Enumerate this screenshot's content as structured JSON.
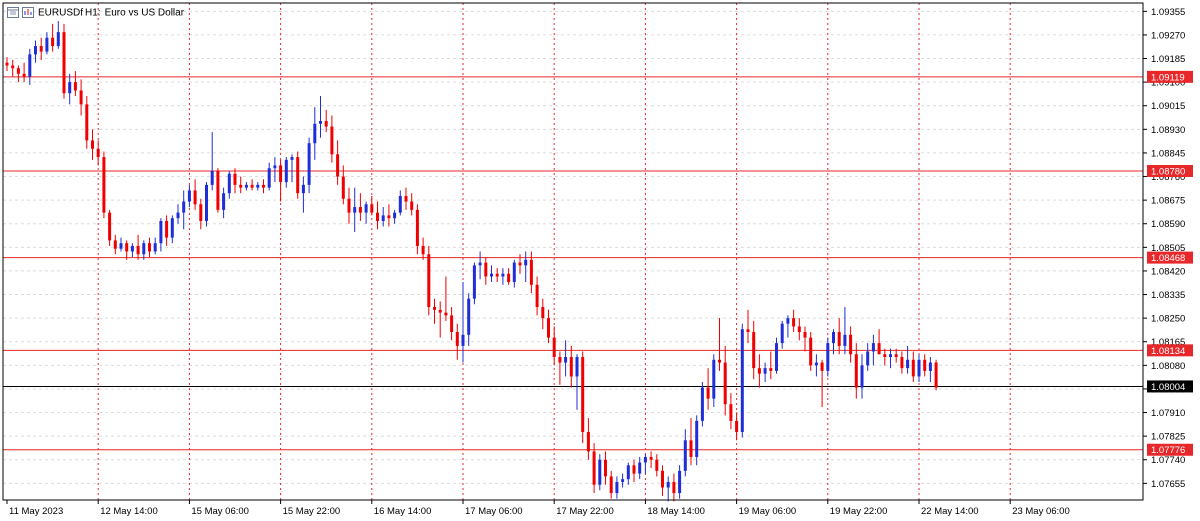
{
  "chart_data": {
    "type": "candlestick",
    "symbol": "EURUSDf",
    "timeframe": "H1:",
    "description": "Euro vs US Dollar",
    "ylim": [
      1.07595,
      1.09385
    ],
    "y_ticks": [
      "1.09355",
      "1.09270",
      "1.09185",
      "1.09100",
      "1.09015",
      "1.08930",
      "1.08845",
      "1.08760",
      "1.08675",
      "1.08590",
      "1.08505",
      "1.08420",
      "1.08335",
      "1.08250",
      "1.08165",
      "1.08080",
      "1.07995",
      "1.07910",
      "1.07825",
      "1.07740",
      "1.07655"
    ],
    "x_ticks": [
      "11 May 2023",
      "12 May 14:00",
      "15 May 06:00",
      "15 May 22:00",
      "16 May 14:00",
      "17 May 06:00",
      "17 May 22:00",
      "18 May 14:00",
      "19 May 06:00",
      "19 May 22:00",
      "22 May 14:00",
      "23 May 06:00"
    ],
    "levels": [
      {
        "label": "1.09119",
        "value": 1.09119,
        "color": "#e8272b"
      },
      {
        "label": "1.08780",
        "value": 1.0878,
        "color": "#e8272b"
      },
      {
        "label": "1.08468",
        "value": 1.08468,
        "color": "#e8272b"
      },
      {
        "label": "1.08134",
        "value": 1.08134,
        "color": "#e8272b"
      },
      {
        "label": "1.07776",
        "value": 1.07776,
        "color": "#e8272b"
      }
    ],
    "current_price": {
      "label": "1.08004",
      "value": 1.08004,
      "color": "#000000"
    },
    "bull_color": "#1f2ed6",
    "bear_color": "#f00000",
    "grid": true,
    "candles": [
      {
        "o": 1.0917,
        "h": 1.0919,
        "l": 1.0914,
        "c": 1.0916
      },
      {
        "o": 1.0916,
        "h": 1.0918,
        "l": 1.0912,
        "c": 1.0915
      },
      {
        "o": 1.0915,
        "h": 1.0916,
        "l": 1.091,
        "c": 1.0913
      },
      {
        "o": 1.0913,
        "h": 1.0917,
        "l": 1.091,
        "c": 1.0912
      },
      {
        "o": 1.0912,
        "h": 1.0922,
        "l": 1.0909,
        "c": 1.092
      },
      {
        "o": 1.092,
        "h": 1.0925,
        "l": 1.0917,
        "c": 1.0923
      },
      {
        "o": 1.0923,
        "h": 1.0926,
        "l": 1.0918,
        "c": 1.0921
      },
      {
        "o": 1.0921,
        "h": 1.0928,
        "l": 1.092,
        "c": 1.0926
      },
      {
        "o": 1.0926,
        "h": 1.0931,
        "l": 1.0921,
        "c": 1.0923
      },
      {
        "o": 1.0923,
        "h": 1.0932,
        "l": 1.0922,
        "c": 1.0928
      },
      {
        "o": 1.0928,
        "h": 1.0931,
        "l": 1.0904,
        "c": 1.0906
      },
      {
        "o": 1.0906,
        "h": 1.0913,
        "l": 1.0902,
        "c": 1.091
      },
      {
        "o": 1.091,
        "h": 1.0914,
        "l": 1.0905,
        "c": 1.0907
      },
      {
        "o": 1.0907,
        "h": 1.0911,
        "l": 1.0898,
        "c": 1.0902
      },
      {
        "o": 1.0902,
        "h": 1.0905,
        "l": 1.0886,
        "c": 1.0889
      },
      {
        "o": 1.0889,
        "h": 1.0893,
        "l": 1.0882,
        "c": 1.0886
      },
      {
        "o": 1.0886,
        "h": 1.0889,
        "l": 1.088,
        "c": 1.0883
      },
      {
        "o": 1.0883,
        "h": 1.0885,
        "l": 1.0861,
        "c": 1.0863
      },
      {
        "o": 1.0863,
        "h": 1.0864,
        "l": 1.0851,
        "c": 1.0853
      },
      {
        "o": 1.0853,
        "h": 1.0855,
        "l": 1.0848,
        "c": 1.085
      },
      {
        "o": 1.085,
        "h": 1.0854,
        "l": 1.0849,
        "c": 1.0852
      },
      {
        "o": 1.0852,
        "h": 1.0853,
        "l": 1.0846,
        "c": 1.0849
      },
      {
        "o": 1.0849,
        "h": 1.0852,
        "l": 1.0847,
        "c": 1.0851
      },
      {
        "o": 1.0851,
        "h": 1.0855,
        "l": 1.0846,
        "c": 1.0848
      },
      {
        "o": 1.0848,
        "h": 1.0853,
        "l": 1.0846,
        "c": 1.0852
      },
      {
        "o": 1.0852,
        "h": 1.0854,
        "l": 1.0847,
        "c": 1.0849
      },
      {
        "o": 1.0849,
        "h": 1.0854,
        "l": 1.0848,
        "c": 1.0852
      },
      {
        "o": 1.0852,
        "h": 1.0861,
        "l": 1.0849,
        "c": 1.086
      },
      {
        "o": 1.086,
        "h": 1.0862,
        "l": 1.0851,
        "c": 1.0854
      },
      {
        "o": 1.0854,
        "h": 1.0862,
        "l": 1.0852,
        "c": 1.0861
      },
      {
        "o": 1.0861,
        "h": 1.0866,
        "l": 1.0859,
        "c": 1.0863
      },
      {
        "o": 1.0863,
        "h": 1.0871,
        "l": 1.0857,
        "c": 1.0867
      },
      {
        "o": 1.0867,
        "h": 1.0873,
        "l": 1.0865,
        "c": 1.0871
      },
      {
        "o": 1.0871,
        "h": 1.0875,
        "l": 1.0864,
        "c": 1.0866
      },
      {
        "o": 1.0866,
        "h": 1.0868,
        "l": 1.0857,
        "c": 1.086
      },
      {
        "o": 1.086,
        "h": 1.0874,
        "l": 1.0858,
        "c": 1.0873
      },
      {
        "o": 1.0873,
        "h": 1.0892,
        "l": 1.0871,
        "c": 1.0878
      },
      {
        "o": 1.0878,
        "h": 1.0879,
        "l": 1.0863,
        "c": 1.0864
      },
      {
        "o": 1.0864,
        "h": 1.0872,
        "l": 1.0861,
        "c": 1.087
      },
      {
        "o": 1.087,
        "h": 1.0878,
        "l": 1.0868,
        "c": 1.0877
      },
      {
        "o": 1.0877,
        "h": 1.0879,
        "l": 1.087,
        "c": 1.0873
      },
      {
        "o": 1.0873,
        "h": 1.0876,
        "l": 1.087,
        "c": 1.0872
      },
      {
        "o": 1.0872,
        "h": 1.0874,
        "l": 1.0871,
        "c": 1.0873
      },
      {
        "o": 1.0873,
        "h": 1.0875,
        "l": 1.0871,
        "c": 1.0872
      },
      {
        "o": 1.0872,
        "h": 1.0874,
        "l": 1.0871,
        "c": 1.0873
      },
      {
        "o": 1.0873,
        "h": 1.0875,
        "l": 1.087,
        "c": 1.0872
      },
      {
        "o": 1.0872,
        "h": 1.0881,
        "l": 1.0871,
        "c": 1.0879
      },
      {
        "o": 1.0879,
        "h": 1.0883,
        "l": 1.0874,
        "c": 1.088
      },
      {
        "o": 1.088,
        "h": 1.0882,
        "l": 1.0867,
        "c": 1.0874
      },
      {
        "o": 1.0874,
        "h": 1.0883,
        "l": 1.0872,
        "c": 1.0882
      },
      {
        "o": 1.0882,
        "h": 1.0884,
        "l": 1.0874,
        "c": 1.0883
      },
      {
        "o": 1.0883,
        "h": 1.0885,
        "l": 1.0868,
        "c": 1.087
      },
      {
        "o": 1.087,
        "h": 1.0876,
        "l": 1.0863,
        "c": 1.0873
      },
      {
        "o": 1.0873,
        "h": 1.089,
        "l": 1.087,
        "c": 1.0888
      },
      {
        "o": 1.0888,
        "h": 1.0901,
        "l": 1.0882,
        "c": 1.0895
      },
      {
        "o": 1.0895,
        "h": 1.0905,
        "l": 1.089,
        "c": 1.0896
      },
      {
        "o": 1.0896,
        "h": 1.09,
        "l": 1.0892,
        "c": 1.0894
      },
      {
        "o": 1.0894,
        "h": 1.0898,
        "l": 1.0881,
        "c": 1.0884
      },
      {
        "o": 1.0884,
        "h": 1.0889,
        "l": 1.0873,
        "c": 1.0876
      },
      {
        "o": 1.0876,
        "h": 1.088,
        "l": 1.0866,
        "c": 1.0868
      },
      {
        "o": 1.0868,
        "h": 1.0872,
        "l": 1.0859,
        "c": 1.0863
      },
      {
        "o": 1.0863,
        "h": 1.0872,
        "l": 1.0856,
        "c": 1.0865
      },
      {
        "o": 1.0865,
        "h": 1.087,
        "l": 1.086,
        "c": 1.0863
      },
      {
        "o": 1.0863,
        "h": 1.0867,
        "l": 1.0859,
        "c": 1.0866
      },
      {
        "o": 1.0866,
        "h": 1.0869,
        "l": 1.0862,
        "c": 1.0863
      },
      {
        "o": 1.0863,
        "h": 1.0867,
        "l": 1.0857,
        "c": 1.086
      },
      {
        "o": 1.086,
        "h": 1.0865,
        "l": 1.0858,
        "c": 1.0862
      },
      {
        "o": 1.0862,
        "h": 1.0866,
        "l": 1.0858,
        "c": 1.0861
      },
      {
        "o": 1.0861,
        "h": 1.0864,
        "l": 1.0859,
        "c": 1.0863
      },
      {
        "o": 1.0863,
        "h": 1.0871,
        "l": 1.0862,
        "c": 1.0869
      },
      {
        "o": 1.0869,
        "h": 1.0872,
        "l": 1.0864,
        "c": 1.0867
      },
      {
        "o": 1.0867,
        "h": 1.087,
        "l": 1.0862,
        "c": 1.0864
      },
      {
        "o": 1.0864,
        "h": 1.0866,
        "l": 1.0848,
        "c": 1.0851
      },
      {
        "o": 1.0851,
        "h": 1.0854,
        "l": 1.0846,
        "c": 1.0848
      },
      {
        "o": 1.0848,
        "h": 1.0851,
        "l": 1.0826,
        "c": 1.0829
      },
      {
        "o": 1.0829,
        "h": 1.0832,
        "l": 1.0823,
        "c": 1.0828
      },
      {
        "o": 1.0828,
        "h": 1.0831,
        "l": 1.0818,
        "c": 1.0827
      },
      {
        "o": 1.0827,
        "h": 1.084,
        "l": 1.0824,
        "c": 1.0826
      },
      {
        "o": 1.0826,
        "h": 1.0829,
        "l": 1.0817,
        "c": 1.082
      },
      {
        "o": 1.082,
        "h": 1.0823,
        "l": 1.081,
        "c": 1.0815
      },
      {
        "o": 1.0815,
        "h": 1.0838,
        "l": 1.0809,
        "c": 1.0819
      },
      {
        "o": 1.0819,
        "h": 1.0834,
        "l": 1.0815,
        "c": 1.0832
      },
      {
        "o": 1.0832,
        "h": 1.0845,
        "l": 1.083,
        "c": 1.0844
      },
      {
        "o": 1.0844,
        "h": 1.0849,
        "l": 1.0839,
        "c": 1.0845
      },
      {
        "o": 1.0845,
        "h": 1.0847,
        "l": 1.0837,
        "c": 1.084
      },
      {
        "o": 1.084,
        "h": 1.0844,
        "l": 1.0838,
        "c": 1.0841
      },
      {
        "o": 1.0841,
        "h": 1.0843,
        "l": 1.0838,
        "c": 1.084
      },
      {
        "o": 1.084,
        "h": 1.0843,
        "l": 1.0837,
        "c": 1.0841
      },
      {
        "o": 1.0841,
        "h": 1.0843,
        "l": 1.0837,
        "c": 1.0838
      },
      {
        "o": 1.0838,
        "h": 1.0846,
        "l": 1.0836,
        "c": 1.0845
      },
      {
        "o": 1.0845,
        "h": 1.0848,
        "l": 1.0841,
        "c": 1.0844
      },
      {
        "o": 1.0844,
        "h": 1.0849,
        "l": 1.0838,
        "c": 1.0846
      },
      {
        "o": 1.0846,
        "h": 1.0849,
        "l": 1.0834,
        "c": 1.0837
      },
      {
        "o": 1.0837,
        "h": 1.084,
        "l": 1.0826,
        "c": 1.0829
      },
      {
        "o": 1.0829,
        "h": 1.0832,
        "l": 1.0821,
        "c": 1.0825
      },
      {
        "o": 1.0825,
        "h": 1.0828,
        "l": 1.0816,
        "c": 1.0818
      },
      {
        "o": 1.0818,
        "h": 1.0822,
        "l": 1.0808,
        "c": 1.0811
      },
      {
        "o": 1.0811,
        "h": 1.0813,
        "l": 1.0801,
        "c": 1.0809
      },
      {
        "o": 1.0809,
        "h": 1.0817,
        "l": 1.0804,
        "c": 1.0811
      },
      {
        "o": 1.0811,
        "h": 1.0815,
        "l": 1.08,
        "c": 1.0804
      },
      {
        "o": 1.0804,
        "h": 1.0812,
        "l": 1.0792,
        "c": 1.0811
      },
      {
        "o": 1.0811,
        "h": 1.0813,
        "l": 1.078,
        "c": 1.0784
      },
      {
        "o": 1.0784,
        "h": 1.0789,
        "l": 1.0774,
        "c": 1.0777
      },
      {
        "o": 1.0777,
        "h": 1.078,
        "l": 1.0762,
        "c": 1.0765
      },
      {
        "o": 1.0765,
        "h": 1.0776,
        "l": 1.0763,
        "c": 1.0774
      },
      {
        "o": 1.0774,
        "h": 1.0777,
        "l": 1.0765,
        "c": 1.0768
      },
      {
        "o": 1.0768,
        "h": 1.077,
        "l": 1.076,
        "c": 1.0762
      },
      {
        "o": 1.0762,
        "h": 1.0768,
        "l": 1.076,
        "c": 1.0766
      },
      {
        "o": 1.0766,
        "h": 1.0769,
        "l": 1.0764,
        "c": 1.0767
      },
      {
        "o": 1.0767,
        "h": 1.0773,
        "l": 1.0765,
        "c": 1.0772
      },
      {
        "o": 1.0772,
        "h": 1.0774,
        "l": 1.0766,
        "c": 1.0769
      },
      {
        "o": 1.0769,
        "h": 1.0775,
        "l": 1.0767,
        "c": 1.0773
      },
      {
        "o": 1.0773,
        "h": 1.0776,
        "l": 1.0769,
        "c": 1.0775
      },
      {
        "o": 1.0775,
        "h": 1.0777,
        "l": 1.0771,
        "c": 1.0774
      },
      {
        "o": 1.0774,
        "h": 1.0776,
        "l": 1.0768,
        "c": 1.077
      },
      {
        "o": 1.077,
        "h": 1.0772,
        "l": 1.0761,
        "c": 1.0764
      },
      {
        "o": 1.0764,
        "h": 1.0768,
        "l": 1.0759,
        "c": 1.0766
      },
      {
        "o": 1.0766,
        "h": 1.0769,
        "l": 1.0759,
        "c": 1.0762
      },
      {
        "o": 1.0762,
        "h": 1.0772,
        "l": 1.076,
        "c": 1.077
      },
      {
        "o": 1.077,
        "h": 1.0785,
        "l": 1.0768,
        "c": 1.0781
      },
      {
        "o": 1.0781,
        "h": 1.0789,
        "l": 1.0772,
        "c": 1.0775
      },
      {
        "o": 1.0775,
        "h": 1.079,
        "l": 1.0772,
        "c": 1.0788
      },
      {
        "o": 1.0788,
        "h": 1.0802,
        "l": 1.0786,
        "c": 1.08
      },
      {
        "o": 1.08,
        "h": 1.0807,
        "l": 1.0792,
        "c": 1.0796
      },
      {
        "o": 1.0796,
        "h": 1.0812,
        "l": 1.0793,
        "c": 1.081
      },
      {
        "o": 1.081,
        "h": 1.0825,
        "l": 1.0806,
        "c": 1.0809
      },
      {
        "o": 1.0809,
        "h": 1.0815,
        "l": 1.079,
        "c": 1.0794
      },
      {
        "o": 1.0794,
        "h": 1.0798,
        "l": 1.0785,
        "c": 1.0788
      },
      {
        "o": 1.0788,
        "h": 1.0791,
        "l": 1.0781,
        "c": 1.0784
      },
      {
        "o": 1.0784,
        "h": 1.0823,
        "l": 1.0782,
        "c": 1.0821
      },
      {
        "o": 1.0821,
        "h": 1.0828,
        "l": 1.0816,
        "c": 1.082
      },
      {
        "o": 1.082,
        "h": 1.0824,
        "l": 1.0803,
        "c": 1.0807
      },
      {
        "o": 1.0807,
        "h": 1.0812,
        "l": 1.08,
        "c": 1.0805
      },
      {
        "o": 1.0805,
        "h": 1.0809,
        "l": 1.0802,
        "c": 1.0807
      },
      {
        "o": 1.0807,
        "h": 1.0813,
        "l": 1.0803,
        "c": 1.0806
      },
      {
        "o": 1.0806,
        "h": 1.0818,
        "l": 1.0805,
        "c": 1.0816
      },
      {
        "o": 1.0816,
        "h": 1.0824,
        "l": 1.0814,
        "c": 1.0823
      },
      {
        "o": 1.0823,
        "h": 1.0826,
        "l": 1.0818,
        "c": 1.0825
      },
      {
        "o": 1.0825,
        "h": 1.0828,
        "l": 1.082,
        "c": 1.0822
      },
      {
        "o": 1.0822,
        "h": 1.0825,
        "l": 1.0817,
        "c": 1.082
      },
      {
        "o": 1.082,
        "h": 1.0822,
        "l": 1.0813,
        "c": 1.0818
      },
      {
        "o": 1.0818,
        "h": 1.082,
        "l": 1.0806,
        "c": 1.0808
      },
      {
        "o": 1.0808,
        "h": 1.0812,
        "l": 1.0804,
        "c": 1.0809
      },
      {
        "o": 1.0809,
        "h": 1.081,
        "l": 1.0793,
        "c": 1.0806
      },
      {
        "o": 1.0806,
        "h": 1.0818,
        "l": 1.0804,
        "c": 1.0816
      },
      {
        "o": 1.0816,
        "h": 1.0821,
        "l": 1.0812,
        "c": 1.082
      },
      {
        "o": 1.082,
        "h": 1.0825,
        "l": 1.0812,
        "c": 1.0815
      },
      {
        "o": 1.0815,
        "h": 1.0829,
        "l": 1.0812,
        "c": 1.0819
      },
      {
        "o": 1.0819,
        "h": 1.0822,
        "l": 1.0809,
        "c": 1.0812
      },
      {
        "o": 1.0812,
        "h": 1.0816,
        "l": 1.0796,
        "c": 1.08
      },
      {
        "o": 1.08,
        "h": 1.0812,
        "l": 1.0796,
        "c": 1.0808
      },
      {
        "o": 1.0808,
        "h": 1.0816,
        "l": 1.0806,
        "c": 1.0813
      },
      {
        "o": 1.0813,
        "h": 1.0819,
        "l": 1.0808,
        "c": 1.0816
      },
      {
        "o": 1.0816,
        "h": 1.0821,
        "l": 1.0812,
        "c": 1.0812
      },
      {
        "o": 1.0812,
        "h": 1.0814,
        "l": 1.0808,
        "c": 1.0811
      },
      {
        "o": 1.0811,
        "h": 1.0814,
        "l": 1.0807,
        "c": 1.0812
      },
      {
        "o": 1.0812,
        "h": 1.0814,
        "l": 1.0809,
        "c": 1.0811
      },
      {
        "o": 1.0811,
        "h": 1.0813,
        "l": 1.0805,
        "c": 1.0807
      },
      {
        "o": 1.0807,
        "h": 1.0815,
        "l": 1.0805,
        "c": 1.081
      },
      {
        "o": 1.081,
        "h": 1.0813,
        "l": 1.0802,
        "c": 1.0804
      },
      {
        "o": 1.0804,
        "h": 1.0812,
        "l": 1.0802,
        "c": 1.081
      },
      {
        "o": 1.081,
        "h": 1.0812,
        "l": 1.0804,
        "c": 1.0806
      },
      {
        "o": 1.0806,
        "h": 1.0811,
        "l": 1.0802,
        "c": 1.0809
      },
      {
        "o": 1.0809,
        "h": 1.081,
        "l": 1.0799,
        "c": 1.08
      }
    ]
  }
}
